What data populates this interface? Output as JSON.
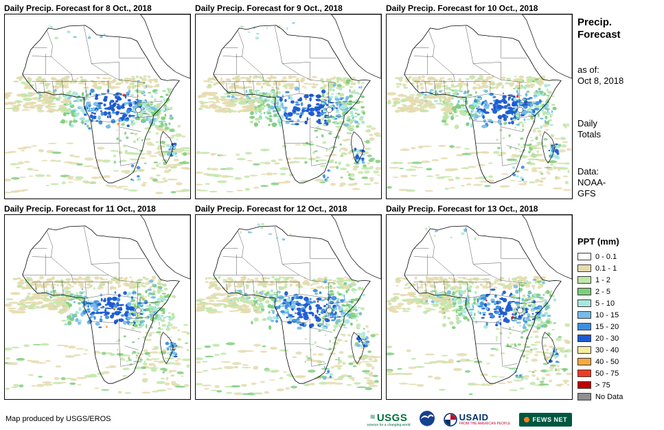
{
  "panels": [
    {
      "title": "Daily Precip. Forecast for 8 Oct., 2018"
    },
    {
      "title": "Daily Precip. Forecast for 9 Oct., 2018"
    },
    {
      "title": "Daily Precip. Forecast for 10 Oct., 2018"
    },
    {
      "title": "Daily Precip. Forecast for 11 Oct., 2018"
    },
    {
      "title": "Daily Precip. Forecast for 12 Oct., 2018"
    },
    {
      "title": "Daily Precip. Forecast for 13 Oct., 2018"
    }
  ],
  "sidebar": {
    "title_line1": "Precip.",
    "title_line2": "Forecast",
    "as_of_label": "as of:",
    "as_of_date": "Oct 8, 2018",
    "totals_line1": "Daily",
    "totals_line2": "Totals",
    "data_label": "Data:",
    "data_line1": "NOAA-",
    "data_line2": "GFS"
  },
  "legend": {
    "title": "PPT (mm)",
    "items": [
      {
        "label": "0 - 0.1",
        "color": "#FFFFFF"
      },
      {
        "label": "0.1 - 1",
        "color": "#E4DBAE"
      },
      {
        "label": "1 - 2",
        "color": "#C1E6A8"
      },
      {
        "label": "2 - 5",
        "color": "#7FCE7F"
      },
      {
        "label": "5 - 10",
        "color": "#A9E8DC"
      },
      {
        "label": "10 - 15",
        "color": "#77BCE8"
      },
      {
        "label": "15 - 20",
        "color": "#3E8EDE"
      },
      {
        "label": "20 - 30",
        "color": "#1B5AD1"
      },
      {
        "label": "30 - 40",
        "color": "#F6EC9F"
      },
      {
        "label": "40 - 50",
        "color": "#F7A941"
      },
      {
        "label": "50 - 75",
        "color": "#EF3B24"
      },
      {
        "label": "> 75",
        "color": "#C00000"
      },
      {
        "label": "No Data",
        "color": "#8E8E8E"
      }
    ]
  },
  "footer": {
    "credit": "Map produced by USGS/EROS",
    "logos": [
      {
        "name": "usgs-logo",
        "label": "USGS",
        "tagline": "science for a changing world",
        "color": "#00703C"
      },
      {
        "name": "noaa-logo",
        "color": "#16418C"
      },
      {
        "name": "usaid-logo",
        "label": "USAID",
        "tagline": "FROM THE AMERICAN PEOPLE",
        "color": "#002F6C"
      },
      {
        "name": "fewsnet-logo",
        "label": "FEWS NET",
        "color": "#00573F"
      }
    ]
  }
}
